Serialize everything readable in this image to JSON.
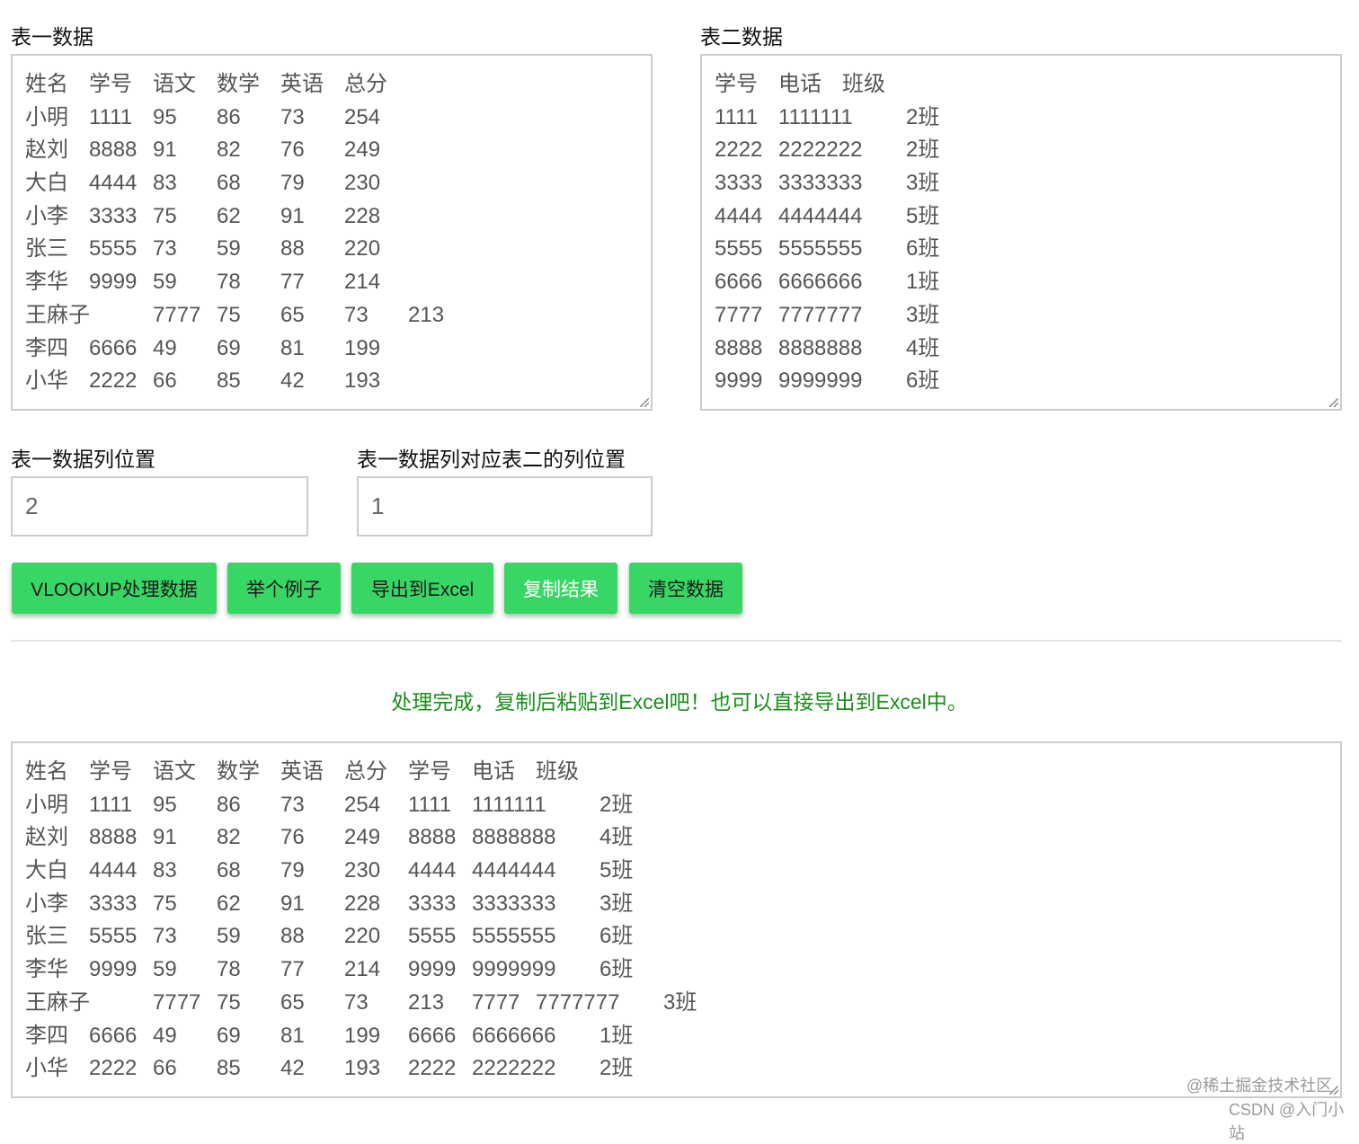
{
  "table1": {
    "label": "表一数据",
    "rows": [
      [
        "姓名",
        "学号",
        "语文",
        "数学",
        "英语",
        "总分"
      ],
      [
        "小明",
        "1111",
        "95",
        "86",
        "73",
        "254"
      ],
      [
        "赵刘",
        "8888",
        "91",
        "82",
        "76",
        "249"
      ],
      [
        "大白",
        "4444",
        "83",
        "68",
        "79",
        "230"
      ],
      [
        "小李",
        "3333",
        "75",
        "62",
        "91",
        "228"
      ],
      [
        "张三",
        "5555",
        "73",
        "59",
        "88",
        "220"
      ],
      [
        "李华",
        "9999",
        "59",
        "78",
        "77",
        "214"
      ],
      [
        "王麻子",
        "7777",
        "75",
        "65",
        "73",
        "213"
      ],
      [
        "李四",
        "6666",
        "49",
        "69",
        "81",
        "199"
      ],
      [
        "小华",
        "2222",
        "66",
        "85",
        "42",
        "193"
      ]
    ]
  },
  "table2": {
    "label": "表二数据",
    "rows": [
      [
        "学号",
        "电话",
        "班级"
      ],
      [
        "1111",
        "1111111",
        "2班"
      ],
      [
        "2222",
        "2222222",
        "2班"
      ],
      [
        "3333",
        "3333333",
        "3班"
      ],
      [
        "4444",
        "4444444",
        "5班"
      ],
      [
        "5555",
        "5555555",
        "6班"
      ],
      [
        "6666",
        "6666666",
        "1班"
      ],
      [
        "7777",
        "7777777",
        "3班"
      ],
      [
        "8888",
        "8888888",
        "4班"
      ],
      [
        "9999",
        "9999999",
        "6班"
      ]
    ]
  },
  "col1": {
    "label": "表一数据列位置",
    "value": "2"
  },
  "col2": {
    "label": "表一数据列对应表二的列位置",
    "value": "1"
  },
  "buttons": {
    "vlookup": "VLOOKUP处理数据",
    "example": "举个例子",
    "export": "导出到Excel",
    "copy": "复制结果",
    "clear": "清空数据"
  },
  "message": "处理完成，复制后粘贴到Excel吧！也可以直接导出到Excel中。",
  "result": {
    "rows": [
      [
        "姓名",
        "学号",
        "语文",
        "数学",
        "英语",
        "总分",
        "学号",
        "电话",
        "班级"
      ],
      [
        "小明",
        "1111",
        "95",
        "86",
        "73",
        "254",
        "1111",
        "1111111",
        "2班"
      ],
      [
        "赵刘",
        "8888",
        "91",
        "82",
        "76",
        "249",
        "8888",
        "8888888",
        "4班"
      ],
      [
        "大白",
        "4444",
        "83",
        "68",
        "79",
        "230",
        "4444",
        "4444444",
        "5班"
      ],
      [
        "小李",
        "3333",
        "75",
        "62",
        "91",
        "228",
        "3333",
        "3333333",
        "3班"
      ],
      [
        "张三",
        "5555",
        "73",
        "59",
        "88",
        "220",
        "5555",
        "5555555",
        "6班"
      ],
      [
        "李华",
        "9999",
        "59",
        "78",
        "77",
        "214",
        "9999",
        "9999999",
        "6班"
      ],
      [
        "王麻子",
        "7777",
        "75",
        "65",
        "73",
        "213",
        "7777",
        "7777777",
        "3班"
      ],
      [
        "李四",
        "6666",
        "49",
        "69",
        "81",
        "199",
        "6666",
        "6666666",
        "1班"
      ],
      [
        "小华",
        "2222",
        "66",
        "85",
        "42",
        "193",
        "2222",
        "2222222",
        "2班"
      ]
    ]
  },
  "watermarks": {
    "juejin": "@稀土掘金技术社区",
    "csdn": "CSDN @入门小站"
  },
  "colors": {
    "button": "#38d765",
    "message": "#1a8f1a",
    "border": "#cccccc"
  }
}
